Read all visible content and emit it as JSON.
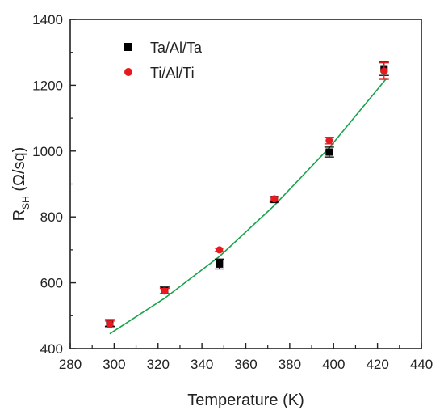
{
  "chart_data": {
    "type": "scatter",
    "xlabel": "Temperature (K)",
    "ylabel": {
      "main": "R",
      "sub": "SH",
      "rest": " (Ω/sq)"
    },
    "xlim": [
      280,
      440
    ],
    "ylim": [
      400,
      1400
    ],
    "xticks": [
      280,
      300,
      320,
      340,
      360,
      380,
      400,
      420,
      440
    ],
    "yticks": [
      400,
      600,
      800,
      1000,
      1200,
      1400
    ],
    "grid": false,
    "legend_position": "top-left",
    "series": [
      {
        "name": "Ta/Al/Ta",
        "marker": "square",
        "color": "#000000",
        "points": [
          {
            "x": 298,
            "y": 478,
            "err": 10
          },
          {
            "x": 323,
            "y": 577,
            "err": 10
          },
          {
            "x": 348,
            "y": 657,
            "err": 15
          },
          {
            "x": 373,
            "y": 853,
            "err": 8
          },
          {
            "x": 398,
            "y": 997,
            "err": 15
          },
          {
            "x": 423,
            "y": 1250,
            "err": 20
          }
        ]
      },
      {
        "name": "Ti/Al/Ti",
        "marker": "circle",
        "color": "#e8191f",
        "points": [
          {
            "x": 298,
            "y": 474,
            "err": 10
          },
          {
            "x": 323,
            "y": 575,
            "err": 8
          },
          {
            "x": 348,
            "y": 700,
            "err": 5
          },
          {
            "x": 373,
            "y": 855,
            "err": 6
          },
          {
            "x": 398,
            "y": 1032,
            "err": 10
          },
          {
            "x": 423,
            "y": 1243,
            "err": 25
          }
        ]
      }
    ],
    "fit_line": {
      "color": "#17a34a",
      "points": [
        {
          "x": 298,
          "y": 445
        },
        {
          "x": 323,
          "y": 553
        },
        {
          "x": 348,
          "y": 680
        },
        {
          "x": 373,
          "y": 835
        },
        {
          "x": 398,
          "y": 1010
        },
        {
          "x": 424,
          "y": 1220
        }
      ]
    }
  }
}
